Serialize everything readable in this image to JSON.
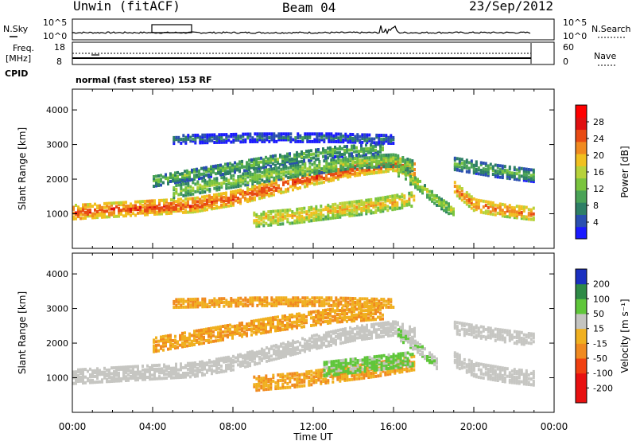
{
  "header": {
    "station": "Unwin (fitACF)",
    "beam": "Beam 04",
    "date": "23/Sep/2012"
  },
  "summary_panel": {
    "left_label_top": "N.Sky",
    "left_label_mid_1": "Freq.",
    "left_label_mid_2": "[MHz]",
    "left_label_bottom": "CPID",
    "right_label_top": "N.Search",
    "right_label_mid": "Nave",
    "noise_ticks": [
      "10^5",
      "10^0"
    ],
    "freq_ticks": [
      "18",
      "8"
    ],
    "nave_ticks": [
      "60",
      "0"
    ],
    "cpid_text": "normal (fast stereo) 153 RF"
  },
  "chart_data": [
    {
      "type": "heatmap",
      "panel": "power",
      "ylabel": "Slant Range [km]",
      "xlabel": "",
      "xlim": [
        0,
        24
      ],
      "ylim": [
        0,
        4600
      ],
      "yticks": [
        1000,
        2000,
        3000,
        4000
      ],
      "colorbar_label": "Power [dB]",
      "colorbar_ticks": [
        4,
        8,
        12,
        16,
        20,
        24,
        28
      ],
      "colorbar_range": [
        0,
        32
      ],
      "bands": [
        {
          "x": [
            0.0,
            3.0,
            6.0,
            8.0,
            10.0,
            12.0,
            14.0,
            16.0,
            17.0
          ],
          "center": [
            1100,
            1200,
            1300,
            1500,
            1800,
            2100,
            2350,
            2500,
            2300
          ],
          "width": 200,
          "level": 26
        },
        {
          "x": [
            5.0,
            8.0,
            11.0,
            14.0,
            16.0,
            17.0
          ],
          "center": [
            1700,
            2000,
            2300,
            2550,
            2600,
            2400
          ],
          "width": 180,
          "level": 15
        },
        {
          "x": [
            4.0,
            7.0,
            10.0,
            13.0,
            15.5
          ],
          "center": [
            2000,
            2300,
            2600,
            2850,
            2950
          ],
          "width": 160,
          "level": 12
        },
        {
          "x": [
            9.0,
            11.0,
            13.0,
            15.0,
            16.5,
            17.0
          ],
          "center": [
            900,
            1000,
            1150,
            1300,
            1450,
            1500
          ],
          "width": 220,
          "level": 20
        },
        {
          "x": [
            16.2,
            17.2,
            18.2,
            19.0
          ],
          "center": [
            2300,
            1900,
            1400,
            1100
          ],
          "width": 160,
          "level": 16
        },
        {
          "x": [
            19.0,
            20.0,
            21.5,
            23.0
          ],
          "center": [
            1800,
            1300,
            1150,
            1050
          ],
          "width": 180,
          "level": 24
        },
        {
          "x": [
            19.0,
            21.0,
            23.0
          ],
          "center": [
            2500,
            2300,
            2150
          ],
          "width": 180,
          "level": 11
        },
        {
          "x": [
            5.0,
            9.0,
            13.0,
            16.0
          ],
          "center": [
            3200,
            3250,
            3250,
            3200
          ],
          "width": 120,
          "level": 7
        }
      ]
    },
    {
      "type": "heatmap",
      "panel": "velocity",
      "ylabel": "Slant Range [km]",
      "xlabel": "Time UT",
      "xlim": [
        0,
        24
      ],
      "ylim": [
        0,
        4600
      ],
      "yticks": [
        1000,
        2000,
        3000,
        4000
      ],
      "xticks": [
        "00:00",
        "04:00",
        "08:00",
        "12:00",
        "16:00",
        "20:00",
        "00:00"
      ],
      "colorbar_label": "Velocity [m s^-1]",
      "colorbar_ticks": [
        -200,
        -100,
        -50,
        -15,
        15,
        50,
        100,
        200
      ],
      "bands": [
        {
          "x": [
            0.0,
            3.0,
            6.0,
            8.0,
            10.0,
            12.0,
            14.0,
            16.0,
            17.0
          ],
          "center": [
            1100,
            1200,
            1300,
            1500,
            1800,
            2100,
            2350,
            2500,
            2300
          ],
          "width": 220,
          "level": 0
        },
        {
          "x": [
            4.0,
            7.0,
            10.0,
            13.0,
            15.5
          ],
          "center": [
            2000,
            2300,
            2600,
            2850,
            2950
          ],
          "width": 200,
          "level": -30
        },
        {
          "x": [
            9.0,
            11.0,
            13.0,
            15.0,
            16.5,
            17.0
          ],
          "center": [
            900,
            1000,
            1150,
            1300,
            1450,
            1500
          ],
          "width": 220,
          "level": -30
        },
        {
          "x": [
            12.5,
            14.0,
            15.5,
            17.0
          ],
          "center": [
            1300,
            1400,
            1500,
            1600
          ],
          "width": 200,
          "level": 40
        },
        {
          "x": [
            16.2,
            17.2,
            18.2
          ],
          "center": [
            2300,
            1900,
            1400
          ],
          "width": 140,
          "level": 30
        },
        {
          "x": [
            19.0,
            20.0,
            21.5,
            23.0
          ],
          "center": [
            1600,
            1300,
            1150,
            1050
          ],
          "width": 220,
          "level": 0
        },
        {
          "x": [
            19.0,
            21.0,
            23.0
          ],
          "center": [
            2500,
            2300,
            2150
          ],
          "width": 180,
          "level": 0
        },
        {
          "x": [
            5.0,
            9.0,
            13.0,
            16.0
          ],
          "center": [
            3200,
            3250,
            3250,
            3200
          ],
          "width": 120,
          "level": -30
        }
      ]
    }
  ]
}
